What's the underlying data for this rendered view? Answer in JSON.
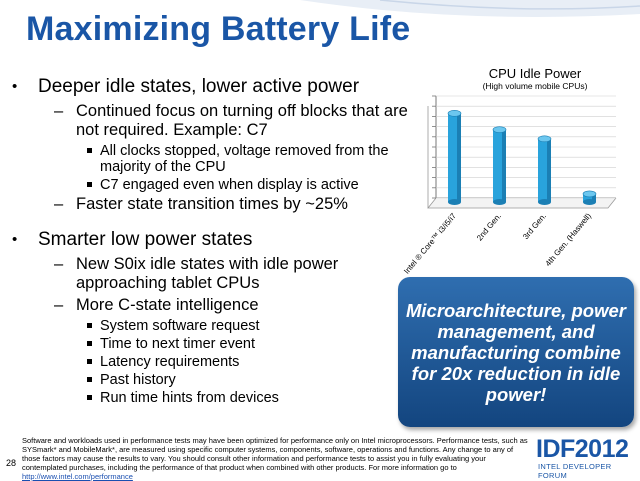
{
  "slide": {
    "title": "Maximizing Battery Life",
    "page_number": "28"
  },
  "bullets": {
    "b1_a": "Deeper idle states, lower active power",
    "b2_a1": "Continued focus on turning off blocks that are not required.  Example: C7",
    "b3_a1": "All clocks stopped, voltage removed from the majority of the CPU",
    "b3_a2": "C7 engaged even when display is active",
    "b2_a2": "Faster state transition times by ~25%",
    "b1_b": "Smarter low power states",
    "b2_b1": "New S0ix idle states with idle power approaching tablet CPUs",
    "b2_b2": "More C-state intelligence",
    "b3_b1": "System software request",
    "b3_b2": "Time to next timer event",
    "b3_b3": "Latency requirements",
    "b3_b4": "Past history",
    "b3_b5": "Run time hints from devices"
  },
  "chart_data": {
    "type": "bar",
    "title": "CPU Idle Power",
    "subtitle": "(High volume mobile CPUs)",
    "categories": [
      "Intel ® Core™ i3/i5/i7",
      "2nd Gen.",
      "3rd Gen.",
      "4th Gen. (Haswell)"
    ],
    "values": [
      83,
      67,
      58,
      4
    ],
    "ylim": [
      0,
      100
    ],
    "bar_color": "#29a3dc",
    "grid": true
  },
  "callout": {
    "text": "Microarchitecture, power management, and manufacturing combine for 20x reduction in idle power!"
  },
  "footer": {
    "disclaimer": "Software and workloads used in performance tests may have been optimized for performance only on Intel microprocessors. Performance tests, such as SYSmark* and MobileMark*, are measured using specific computer systems, components, software, operations and functions. Any change to any of those factors may cause the results to vary. You should consult other information and performance tests to assist you in fully evaluating your contemplated purchases, including the performance of that product when combined with other products.",
    "more_info": "For more information go to ",
    "link": "http://www.intel.com/performance"
  },
  "brand": {
    "logo": "IDF2012",
    "tagline": "INTEL DEVELOPER FORUM"
  },
  "colors": {
    "title_blue": "#1a56a6",
    "callout_blue": "#1f5a9a"
  }
}
